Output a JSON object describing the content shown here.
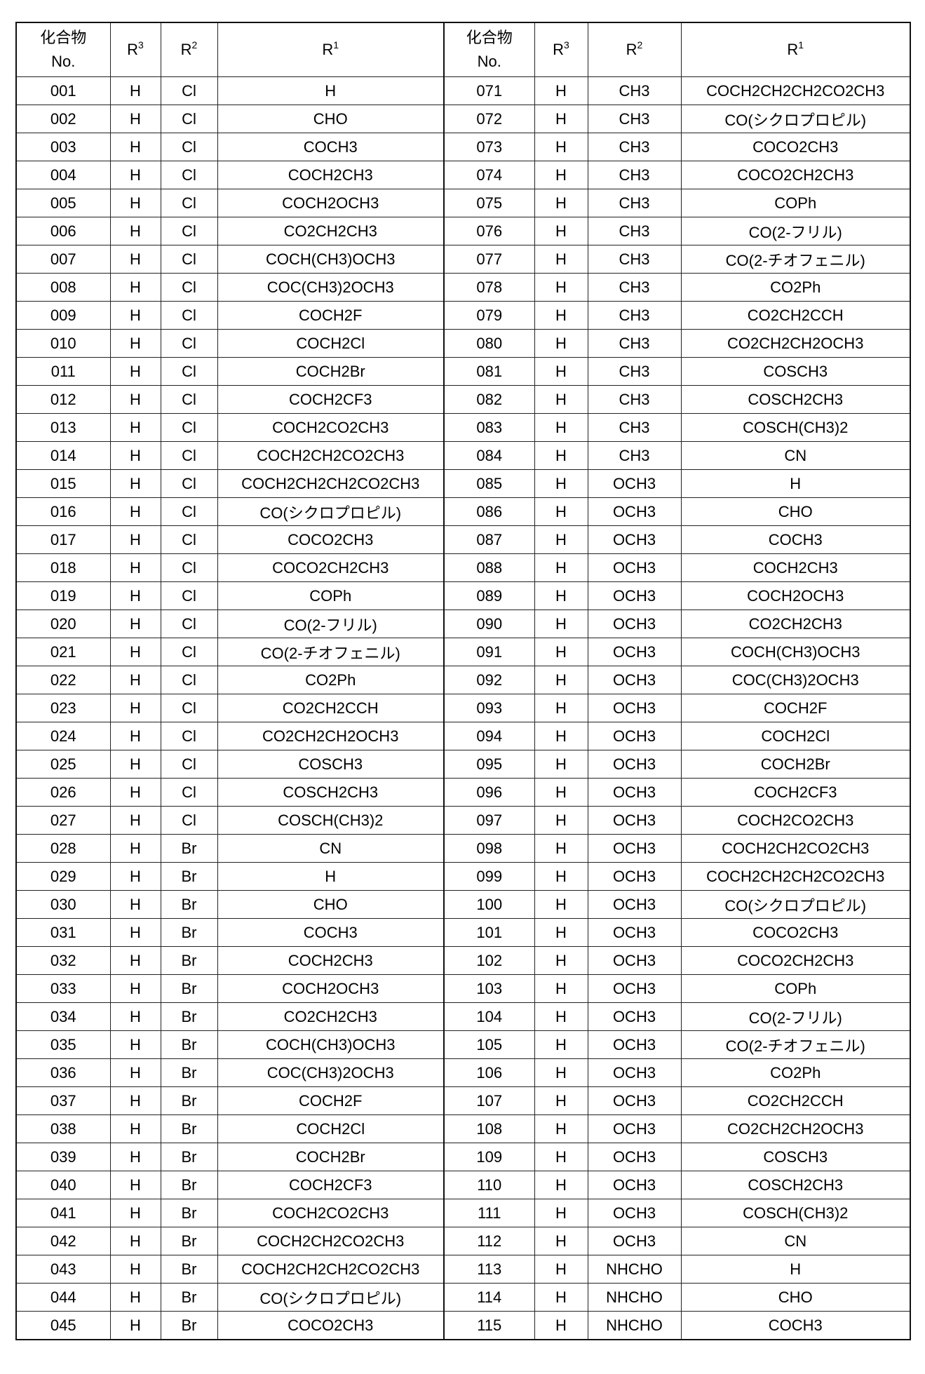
{
  "header": {
    "compound_no": "化合物",
    "compound_no_line2": "No.",
    "r3": "R",
    "r3_sup": "3",
    "r2": "R",
    "r2_sup": "2",
    "r1": "R",
    "r1_sup": "1"
  },
  "left_rows": [
    [
      "001",
      "H",
      "Cl",
      "H"
    ],
    [
      "002",
      "H",
      "Cl",
      "CHO"
    ],
    [
      "003",
      "H",
      "Cl",
      "COCH3"
    ],
    [
      "004",
      "H",
      "Cl",
      "COCH2CH3"
    ],
    [
      "005",
      "H",
      "Cl",
      "COCH2OCH3"
    ],
    [
      "006",
      "H",
      "Cl",
      "CO2CH2CH3"
    ],
    [
      "007",
      "H",
      "Cl",
      "COCH(CH3)OCH3"
    ],
    [
      "008",
      "H",
      "Cl",
      "COC(CH3)2OCH3"
    ],
    [
      "009",
      "H",
      "Cl",
      "COCH2F"
    ],
    [
      "010",
      "H",
      "Cl",
      "COCH2Cl"
    ],
    [
      "011",
      "H",
      "Cl",
      "COCH2Br"
    ],
    [
      "012",
      "H",
      "Cl",
      "COCH2CF3"
    ],
    [
      "013",
      "H",
      "Cl",
      "COCH2CO2CH3"
    ],
    [
      "014",
      "H",
      "Cl",
      "COCH2CH2CO2CH3"
    ],
    [
      "015",
      "H",
      "Cl",
      "COCH2CH2CH2CO2CH3"
    ],
    [
      "016",
      "H",
      "Cl",
      "CO(シクロプロピル)"
    ],
    [
      "017",
      "H",
      "Cl",
      "COCO2CH3"
    ],
    [
      "018",
      "H",
      "Cl",
      "COCO2CH2CH3"
    ],
    [
      "019",
      "H",
      "Cl",
      "COPh"
    ],
    [
      "020",
      "H",
      "Cl",
      "CO(2-フリル)"
    ],
    [
      "021",
      "H",
      "Cl",
      "CO(2-チオフェニル)"
    ],
    [
      "022",
      "H",
      "Cl",
      "CO2Ph"
    ],
    [
      "023",
      "H",
      "Cl",
      "CO2CH2CCH"
    ],
    [
      "024",
      "H",
      "Cl",
      "CO2CH2CH2OCH3"
    ],
    [
      "025",
      "H",
      "Cl",
      "COSCH3"
    ],
    [
      "026",
      "H",
      "Cl",
      "COSCH2CH3"
    ],
    [
      "027",
      "H",
      "Cl",
      "COSCH(CH3)2"
    ],
    [
      "028",
      "H",
      "Br",
      "CN"
    ],
    [
      "029",
      "H",
      "Br",
      "H"
    ],
    [
      "030",
      "H",
      "Br",
      "CHO"
    ],
    [
      "031",
      "H",
      "Br",
      "COCH3"
    ],
    [
      "032",
      "H",
      "Br",
      "COCH2CH3"
    ],
    [
      "033",
      "H",
      "Br",
      "COCH2OCH3"
    ],
    [
      "034",
      "H",
      "Br",
      "CO2CH2CH3"
    ],
    [
      "035",
      "H",
      "Br",
      "COCH(CH3)OCH3"
    ],
    [
      "036",
      "H",
      "Br",
      "COC(CH3)2OCH3"
    ],
    [
      "037",
      "H",
      "Br",
      "COCH2F"
    ],
    [
      "038",
      "H",
      "Br",
      "COCH2Cl"
    ],
    [
      "039",
      "H",
      "Br",
      "COCH2Br"
    ],
    [
      "040",
      "H",
      "Br",
      "COCH2CF3"
    ],
    [
      "041",
      "H",
      "Br",
      "COCH2CO2CH3"
    ],
    [
      "042",
      "H",
      "Br",
      "COCH2CH2CO2CH3"
    ],
    [
      "043",
      "H",
      "Br",
      "COCH2CH2CH2CO2CH3"
    ],
    [
      "044",
      "H",
      "Br",
      "CO(シクロプロピル)"
    ],
    [
      "045",
      "H",
      "Br",
      "COCO2CH3"
    ]
  ],
  "right_rows": [
    [
      "071",
      "H",
      "CH3",
      "COCH2CH2CH2CO2CH3"
    ],
    [
      "072",
      "H",
      "CH3",
      "CO(シクロプロピル)"
    ],
    [
      "073",
      "H",
      "CH3",
      "COCO2CH3"
    ],
    [
      "074",
      "H",
      "CH3",
      "COCO2CH2CH3"
    ],
    [
      "075",
      "H",
      "CH3",
      "COPh"
    ],
    [
      "076",
      "H",
      "CH3",
      "CO(2-フリル)"
    ],
    [
      "077",
      "H",
      "CH3",
      "CO(2-チオフェニル)"
    ],
    [
      "078",
      "H",
      "CH3",
      "CO2Ph"
    ],
    [
      "079",
      "H",
      "CH3",
      "CO2CH2CCH"
    ],
    [
      "080",
      "H",
      "CH3",
      "CO2CH2CH2OCH3"
    ],
    [
      "081",
      "H",
      "CH3",
      "COSCH3"
    ],
    [
      "082",
      "H",
      "CH3",
      "COSCH2CH3"
    ],
    [
      "083",
      "H",
      "CH3",
      "COSCH(CH3)2"
    ],
    [
      "084",
      "H",
      "CH3",
      "CN"
    ],
    [
      "085",
      "H",
      "OCH3",
      "H"
    ],
    [
      "086",
      "H",
      "OCH3",
      "CHO"
    ],
    [
      "087",
      "H",
      "OCH3",
      "COCH3"
    ],
    [
      "088",
      "H",
      "OCH3",
      "COCH2CH3"
    ],
    [
      "089",
      "H",
      "OCH3",
      "COCH2OCH3"
    ],
    [
      "090",
      "H",
      "OCH3",
      "CO2CH2CH3"
    ],
    [
      "091",
      "H",
      "OCH3",
      "COCH(CH3)OCH3"
    ],
    [
      "092",
      "H",
      "OCH3",
      "COC(CH3)2OCH3"
    ],
    [
      "093",
      "H",
      "OCH3",
      "COCH2F"
    ],
    [
      "094",
      "H",
      "OCH3",
      "COCH2Cl"
    ],
    [
      "095",
      "H",
      "OCH3",
      "COCH2Br"
    ],
    [
      "096",
      "H",
      "OCH3",
      "COCH2CF3"
    ],
    [
      "097",
      "H",
      "OCH3",
      "COCH2CO2CH3"
    ],
    [
      "098",
      "H",
      "OCH3",
      "COCH2CH2CO2CH3"
    ],
    [
      "099",
      "H",
      "OCH3",
      "COCH2CH2CH2CO2CH3"
    ],
    [
      "100",
      "H",
      "OCH3",
      "CO(シクロプロピル)"
    ],
    [
      "101",
      "H",
      "OCH3",
      "COCO2CH3"
    ],
    [
      "102",
      "H",
      "OCH3",
      "COCO2CH2CH3"
    ],
    [
      "103",
      "H",
      "OCH3",
      "COPh"
    ],
    [
      "104",
      "H",
      "OCH3",
      "CO(2-フリル)"
    ],
    [
      "105",
      "H",
      "OCH3",
      "CO(2-チオフェニル)"
    ],
    [
      "106",
      "H",
      "OCH3",
      "CO2Ph"
    ],
    [
      "107",
      "H",
      "OCH3",
      "CO2CH2CCH"
    ],
    [
      "108",
      "H",
      "OCH3",
      "CO2CH2CH2OCH3"
    ],
    [
      "109",
      "H",
      "OCH3",
      "COSCH3"
    ],
    [
      "110",
      "H",
      "OCH3",
      "COSCH2CH3"
    ],
    [
      "111",
      "H",
      "OCH3",
      "COSCH(CH3)2"
    ],
    [
      "112",
      "H",
      "OCH3",
      "CN"
    ],
    [
      "113",
      "H",
      "NHCHO",
      "H"
    ],
    [
      "114",
      "H",
      "NHCHO",
      "CHO"
    ],
    [
      "115",
      "H",
      "NHCHO",
      "COCH3"
    ]
  ]
}
